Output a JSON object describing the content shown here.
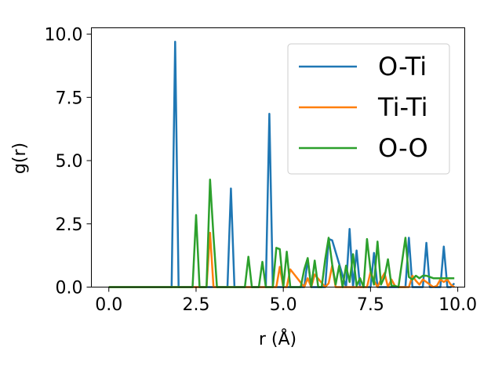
{
  "chart_data": {
    "type": "line",
    "xlabel": "r (Å)",
    "ylabel": "g(r)",
    "xlim": [
      -0.5,
      10.2
    ],
    "ylim": [
      0,
      10.25
    ],
    "xticks": [
      0.0,
      2.5,
      5.0,
      7.5,
      10.0
    ],
    "xtick_labels": [
      "0.0",
      "2.5",
      "5.0",
      "7.5",
      "10.0"
    ],
    "yticks": [
      0.0,
      2.5,
      5.0,
      7.5,
      10.0
    ],
    "ytick_labels": [
      "0.0",
      "2.5",
      "5.0",
      "7.5",
      "10.0"
    ],
    "grid": false,
    "legend_position": "top-right",
    "series": [
      {
        "name": "O-Ti",
        "color": "#1f77b4",
        "x": [
          0,
          1.8,
          1.9,
          2.0,
          2.1,
          3.4,
          3.5,
          3.6,
          4.5,
          4.6,
          4.7,
          5.6,
          5.7,
          5.8,
          6.2,
          6.3,
          6.4,
          6.8,
          6.9,
          7.0,
          7.1,
          7.2,
          7.5,
          7.6,
          7.7,
          8.5,
          8.6,
          8.7,
          9.0,
          9.1,
          9.2,
          9.5,
          9.6,
          9.7,
          9.8,
          9.9
        ],
        "y": [
          0,
          0,
          9.7,
          0,
          0,
          0,
          3.9,
          0,
          0,
          6.85,
          0,
          0,
          1.1,
          0,
          0,
          1.9,
          1.85,
          0,
          2.3,
          0,
          1.45,
          0,
          0,
          1.35,
          0,
          0,
          1.95,
          0,
          0,
          1.75,
          0,
          0,
          1.6,
          0,
          0,
          0.15
        ]
      },
      {
        "name": "Ti-Ti",
        "color": "#ff7f0e",
        "x": [
          0,
          2.8,
          2.9,
          3.0,
          4.8,
          4.9,
          5.0,
          5.1,
          5.2,
          5.6,
          5.7,
          5.8,
          5.9,
          6.2,
          6.3,
          6.4,
          6.5,
          7.4,
          7.5,
          7.6,
          7.7,
          7.8,
          7.9,
          8.0,
          8.1,
          8.2,
          8.3,
          8.6,
          8.7,
          8.8,
          8.9,
          9.0,
          9.1,
          9.2,
          9.3,
          9.4,
          9.5,
          9.6,
          9.7,
          9.8,
          9.9
        ],
        "y": [
          0,
          0,
          2.15,
          0,
          0,
          0.8,
          0,
          0,
          0.7,
          0,
          0.35,
          0,
          0.5,
          0,
          0.15,
          0.85,
          0,
          0,
          0.6,
          0.25,
          0,
          0.3,
          0.55,
          0,
          0.3,
          0.05,
          0,
          0,
          0.45,
          0.25,
          0.1,
          0.3,
          0.2,
          0.1,
          0,
          0.05,
          0.3,
          0.2,
          0.3,
          0.1,
          0
        ]
      },
      {
        "name": "O-O",
        "color": "#2ca02c",
        "x": [
          0,
          2.4,
          2.5,
          2.6,
          2.8,
          2.9,
          3.0,
          3.1,
          3.9,
          4.0,
          4.1,
          4.3,
          4.4,
          4.5,
          4.7,
          4.8,
          4.9,
          5.0,
          5.1,
          5.2,
          5.5,
          5.6,
          5.7,
          5.8,
          5.9,
          6.0,
          6.1,
          6.2,
          6.3,
          6.4,
          6.5,
          6.6,
          6.7,
          6.8,
          6.9,
          7.0,
          7.1,
          7.2,
          7.3,
          7.4,
          7.5,
          7.6,
          7.7,
          7.8,
          7.9,
          8.0,
          8.1,
          8.2,
          8.3,
          8.5,
          8.6,
          8.7,
          8.8,
          8.9,
          9.0,
          9.1,
          9.2,
          9.3,
          9.4,
          9.5,
          9.6,
          9.7,
          9.8,
          9.9
        ],
        "y": [
          0,
          0,
          2.85,
          0,
          0,
          4.25,
          2.0,
          0,
          0,
          1.2,
          0,
          0,
          1.0,
          0,
          0,
          1.55,
          1.5,
          0,
          1.4,
          0,
          0,
          0.7,
          1.15,
          0,
          1.05,
          0,
          0,
          1.1,
          1.95,
          0.9,
          0.1,
          0.85,
          0,
          0.85,
          0.2,
          1.3,
          0.05,
          0.35,
          0,
          1.9,
          0.65,
          0.1,
          1.8,
          0.1,
          0.4,
          1.1,
          0.05,
          0.05,
          0,
          1.95,
          0.4,
          0.3,
          0.45,
          0.35,
          0.45,
          0.45,
          0.4,
          0.35,
          0.35,
          0.35,
          0.35,
          0.35,
          0.35,
          0.35
        ]
      }
    ]
  }
}
